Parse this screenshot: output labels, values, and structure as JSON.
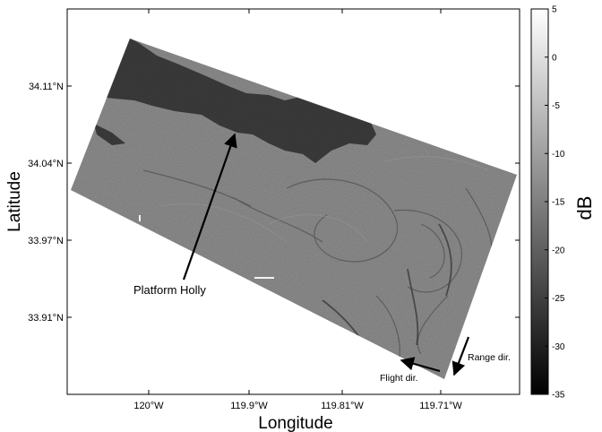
{
  "map": {
    "xlabel": "Longitude",
    "ylabel": "Latitude",
    "lon_ticks": [
      "120°W",
      "119.9°W",
      "119.81°W",
      "119.71°W"
    ],
    "lat_ticks": [
      "34.11°N",
      "34.04°N",
      "33.97°N",
      "33.91°N"
    ]
  },
  "annotations": {
    "platform": "Platform Holly",
    "range_dir": "Range dir.",
    "flight_dir": "Flight dir."
  },
  "colorbar": {
    "label": "dB",
    "ticks": [
      "5",
      "0",
      "-5",
      "-10",
      "-15",
      "-20",
      "-25",
      "-30",
      "-35"
    ],
    "min": -35,
    "max": 5,
    "colormap": "gray"
  },
  "colors": {
    "sea": "#7c7c7c",
    "land_dark": "#1c1c1c",
    "frame": "#000000"
  }
}
